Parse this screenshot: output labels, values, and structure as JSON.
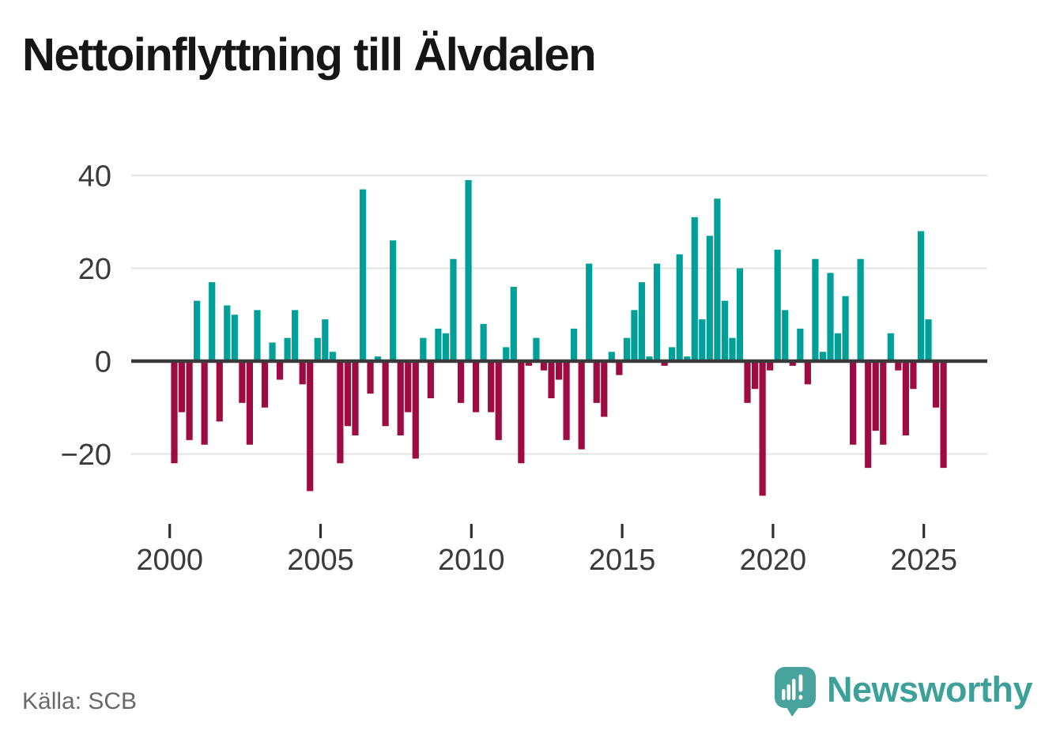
{
  "title": "Nettoinflyttning till Älvdalen",
  "source_label": "Källa: SCB",
  "logo": {
    "wordmark": "Newsworthy"
  },
  "colors": {
    "positive_bar": "#00a099",
    "negative_bar": "#9d0b41",
    "gridline": "#e7e7e7",
    "zero_line": "#3a3a3a",
    "axis_text": "#3b3b3b",
    "tick_mark": "#2f2f2f",
    "title_text": "#161616",
    "source_text": "#68686d",
    "logo_teal": "#47a39c",
    "logo_text": "#3da19a",
    "background": "#ffffff"
  },
  "chart_data": {
    "type": "bar",
    "title": "Nettoinflyttning till Älvdalen",
    "frequency": "quarterly",
    "start_year": 2000,
    "start_quarter": 1,
    "end_period": "2025-Q3",
    "xlabel": "",
    "ylabel": "",
    "ylim": [
      -32,
      44
    ],
    "grid": "horizontal",
    "legend": "none",
    "y_ticks": [
      40,
      20,
      0,
      -20
    ],
    "y_tick_labels": [
      "40",
      "20",
      "0",
      "−20"
    ],
    "x_tick_years": [
      2000,
      2005,
      2010,
      2015,
      2020,
      2025
    ],
    "x_tick_labels": [
      "2000",
      "2005",
      "2010",
      "2015",
      "2020",
      "2025"
    ],
    "values": [
      -22,
      -11,
      -17,
      13,
      -18,
      17,
      -13,
      12,
      10,
      -9,
      -18,
      11,
      -10,
      4,
      -4,
      5,
      11,
      -5,
      -28,
      5,
      9,
      2,
      -22,
      -14,
      -16,
      37,
      -7,
      1,
      -14,
      26,
      -16,
      -11,
      -21,
      5,
      -8,
      7,
      6,
      22,
      -9,
      39,
      -11,
      8,
      -11,
      -17,
      3,
      16,
      -22,
      -1,
      5,
      -2,
      -8,
      -4,
      -17,
      7,
      -19,
      21,
      -9,
      -12,
      2,
      -3,
      5,
      11,
      17,
      1,
      21,
      -1,
      3,
      23,
      1,
      31,
      9,
      27,
      35,
      13,
      5,
      20,
      -9,
      -6,
      -29,
      -2,
      24,
      11,
      -1,
      7,
      -5,
      22,
      2,
      19,
      6,
      14,
      -18,
      22,
      -23,
      -15,
      -18,
      6,
      -2,
      -16,
      -6,
      28,
      9,
      -10,
      -23
    ]
  }
}
